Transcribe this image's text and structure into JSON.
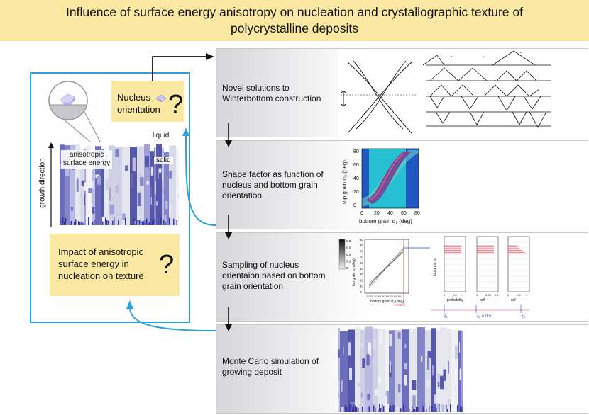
{
  "title_line1": "Influence of surface energy anisotropy on nucleation and crystallographic texture of",
  "title_line2": "polycrystalline deposits",
  "left": {
    "nucleus_label_1": "Nucleus",
    "nucleus_label_2": "orientation",
    "question": "?",
    "liquid": "liquid",
    "solid": "solid",
    "anisotropic_1": "anisotropic",
    "anisotropic_2": "surface energy",
    "growth_direction": "growth direction",
    "impact_1": "Impact of anisotropic",
    "impact_2": "surface energy in",
    "impact_3": "nucleation on texture",
    "impact_question": "?"
  },
  "stages": [
    {
      "lines": [
        "Novel solutions to",
        "Winterbottom construction"
      ]
    },
    {
      "lines": [
        "Shape factor as function of",
        "nucleus and bottom grain",
        "orientation"
      ]
    },
    {
      "lines": [
        "Sampling of nucleus",
        "orientaion based on bottom",
        "grain orientation"
      ]
    },
    {
      "lines": [
        "Monte Carlo simulation of",
        "growing deposit"
      ]
    }
  ],
  "shape_plot": {
    "ylabel": "top grain α₂ (deg)",
    "xlabel": "bottom grain α₁ (deg)",
    "yticks": [
      "80",
      "60",
      "40",
      "20",
      "0"
    ],
    "xticks": [
      "0",
      "20",
      "40",
      "60",
      "80"
    ]
  },
  "sampling_plot": {
    "colorbar_ticks": [
      "0.8",
      "0.6",
      "0.4",
      "0.2",
      "0"
    ],
    "ylabel": "top grain α₂ (deg)",
    "xlabel": "bottom grain α₁ (deg)",
    "yticks": [
      "90",
      "80",
      "70",
      "60",
      "50",
      "40",
      "30",
      "20",
      "10",
      "0"
    ],
    "xticks": "10 20 30 40 50 60 70 80 90",
    "initial": "initial α₁",
    "panel_ylabel": "top grain α₂",
    "panel_xlabels": [
      "probability",
      "pdf",
      "cdf"
    ],
    "panel_xticks": [
      [
        "0",
        "0.5",
        "1"
      ],
      [
        "0",
        "0.05",
        "0.1"
      ],
      [
        "0",
        "0.5",
        "1"
      ]
    ],
    "xi_left": "ξ₁",
    "xi_mid": "ξ₂ = 0.5",
    "xi_right": "ξ₃"
  }
}
